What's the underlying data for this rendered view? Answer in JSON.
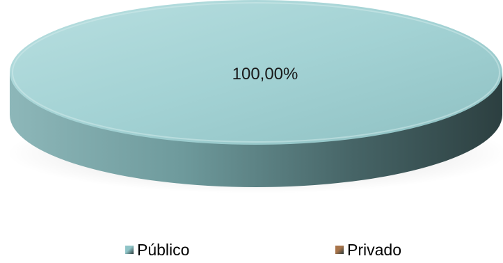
{
  "chart_data": {
    "type": "pie",
    "categories": [
      "Público",
      "Privado"
    ],
    "values": [
      100.0,
      0.0
    ],
    "data_labels": [
      "100,00%"
    ],
    "legend": "bottom",
    "colors": [
      "#8fc4c7",
      "#a8744a"
    ]
  }
}
